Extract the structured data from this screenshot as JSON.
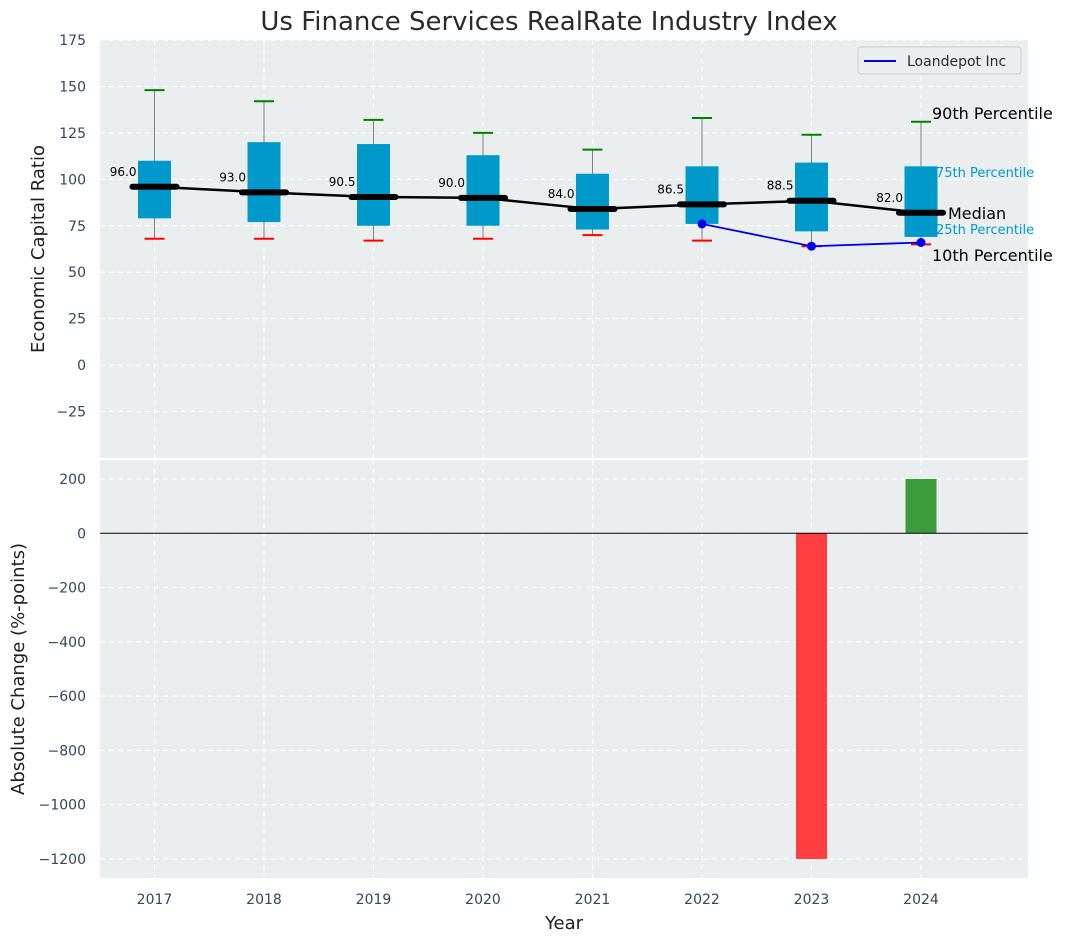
{
  "chart_data": [
    {
      "type": "box",
      "title": "Us Finance Services RealRate Industry Index",
      "ylabel": "Economic Capital Ratio",
      "xlabel": "",
      "ylim": [
        -50,
        175
      ],
      "yticks": [
        -25,
        0,
        25,
        50,
        75,
        100,
        125,
        150,
        175
      ],
      "grid": true,
      "legend_position": "top-right",
      "categories": [
        "2017",
        "2018",
        "2019",
        "2020",
        "2021",
        "2022",
        "2023",
        "2024"
      ],
      "boxes": [
        {
          "year": "2017",
          "p10": 68,
          "p25": 79,
          "median": 96.0,
          "p75": 110,
          "p90": 148
        },
        {
          "year": "2018",
          "p10": 68,
          "p25": 77,
          "median": 93.0,
          "p75": 120,
          "p90": 142
        },
        {
          "year": "2019",
          "p10": 67,
          "p25": 75,
          "median": 90.5,
          "p75": 119,
          "p90": 132
        },
        {
          "year": "2020",
          "p10": 68,
          "p25": 75,
          "median": 90.0,
          "p75": 113,
          "p90": 125
        },
        {
          "year": "2021",
          "p10": 70,
          "p25": 73,
          "median": 84.0,
          "p75": 103,
          "p90": 116
        },
        {
          "year": "2022",
          "p10": 67,
          "p25": 76,
          "median": 86.5,
          "p75": 107,
          "p90": 133
        },
        {
          "year": "2023",
          "p10": 64,
          "p25": 72,
          "median": 88.5,
          "p75": 109,
          "p90": 124
        },
        {
          "year": "2024",
          "p10": 65,
          "p25": 69,
          "median": 82.0,
          "p75": 107,
          "p90": 131
        }
      ],
      "median_labels": [
        "96.0",
        "93.0",
        "90.5",
        "90.0",
        "84.0",
        "86.5",
        "88.5",
        "82.0"
      ],
      "series": [
        {
          "name": "Loandepot Inc",
          "x": [
            "2022",
            "2023",
            "2024"
          ],
          "values": [
            76,
            64,
            66
          ],
          "color": "#0000ee"
        }
      ],
      "annotations": {
        "p90": "90th Percentile",
        "p75": "75th Percentile",
        "median": "Median",
        "p25": "25th Percentile",
        "p10": "10th Percentile"
      },
      "colors": {
        "box": "#0099cc",
        "median_line": "#000000",
        "p90_cap": "#008000",
        "p10_cap": "#ff0000",
        "whisker": "#808080",
        "background": "#eaeeef"
      }
    },
    {
      "type": "bar",
      "ylabel": "Absolute Change (%-points)",
      "xlabel": "Year",
      "ylim": [
        -1270,
        270
      ],
      "yticks": [
        -1200,
        -1000,
        -800,
        -600,
        -400,
        -200,
        0,
        200
      ],
      "grid": true,
      "categories": [
        "2017",
        "2018",
        "2019",
        "2020",
        "2021",
        "2022",
        "2023",
        "2024"
      ],
      "values": [
        null,
        null,
        null,
        null,
        null,
        null,
        -1200,
        200
      ],
      "colors": {
        "negative": "#ff3f3f",
        "positive": "#3c9c3c"
      }
    }
  ]
}
